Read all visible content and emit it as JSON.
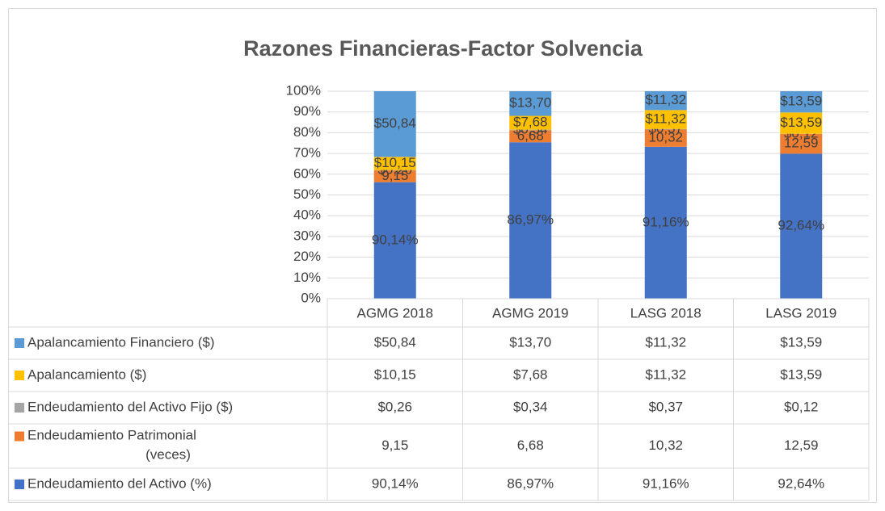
{
  "chart_data": {
    "type": "stacked_percent_bar",
    "title": "Razones Financieras-Factor Solvencia",
    "categories": [
      "AGMG 2018",
      "AGMG 2019",
      "LASG 2018",
      "LASG 2019"
    ],
    "ylim": [
      0,
      100
    ],
    "yticks": [
      {
        "value": 0,
        "label": "0%"
      },
      {
        "value": 10,
        "label": "10%"
      },
      {
        "value": 20,
        "label": "20%"
      },
      {
        "value": 30,
        "label": "30%"
      },
      {
        "value": 40,
        "label": "40%"
      },
      {
        "value": 50,
        "label": "50%"
      },
      {
        "value": 60,
        "label": "60%"
      },
      {
        "value": 70,
        "label": "70%"
      },
      {
        "value": 80,
        "label": "80%"
      },
      {
        "value": 90,
        "label": "90%"
      },
      {
        "value": 100,
        "label": "100%"
      }
    ],
    "grid": true,
    "series": [
      {
        "name": "Endeudamiento del Activo (%)",
        "color": "#4472c4",
        "values": [
          90.14,
          86.97,
          91.16,
          92.64
        ],
        "value_labels": [
          "90,14%",
          "86,97%",
          "91,16%",
          "92,64%"
        ]
      },
      {
        "name": "Endeudamiento Patrimonial (veces)",
        "color": "#ed7d31",
        "values": [
          9.15,
          6.68,
          10.32,
          12.59
        ],
        "value_labels": [
          "9,15",
          "6,68",
          "10,32",
          "12,59"
        ]
      },
      {
        "name": "Endeudamiento del Activo Fijo ($)",
        "color": "#a5a5a5",
        "values": [
          0.26,
          0.34,
          0.37,
          0.12
        ],
        "value_labels": [
          "$0,26",
          "$0,34",
          "$0,37",
          "$0,12"
        ]
      },
      {
        "name": "Apalancamiento ($)",
        "color": "#ffc000",
        "values": [
          10.15,
          7.68,
          11.32,
          13.59
        ],
        "value_labels": [
          "$10,15",
          "$7,68",
          "$11,32",
          "$13,59"
        ]
      },
      {
        "name": "Apalancamiento Financiero ($)",
        "color": "#5b9bd5",
        "values": [
          50.84,
          13.7,
          11.32,
          13.59
        ],
        "value_labels": [
          "$50,84",
          "$13,70",
          "$11,32",
          "$13,59"
        ]
      }
    ]
  }
}
